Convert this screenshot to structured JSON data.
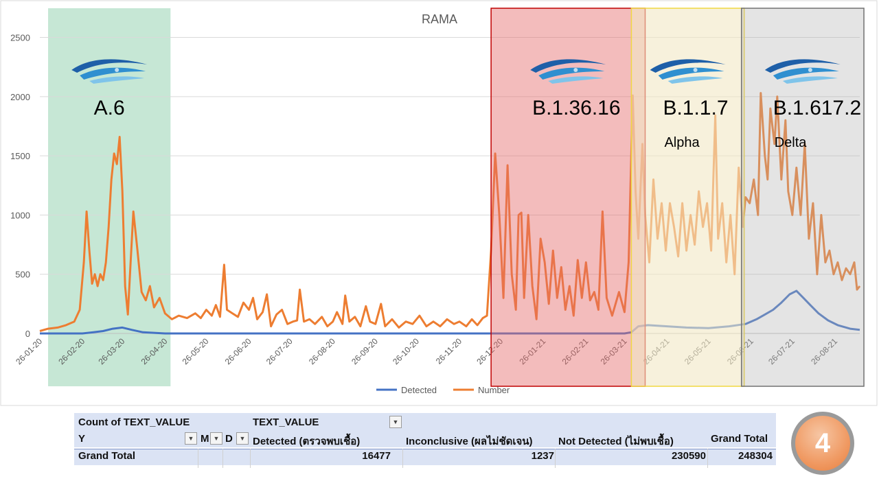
{
  "chart_data": {
    "type": "line",
    "title": "RAMA",
    "ylim": [
      0,
      2700
    ],
    "y_ticks": [
      0,
      500,
      1000,
      1500,
      2000,
      2500
    ],
    "x_ticks": [
      "26-01-20",
      "26-02-20",
      "26-03-20",
      "26-04-20",
      "26-05-20",
      "26-06-20",
      "26-07-20",
      "26-08-20",
      "26-09-20",
      "26-10-20",
      "26-11-20",
      "26-12-20",
      "26-01-21",
      "26-02-21",
      "26-03-21",
      "26-04-21",
      "26-05-21",
      "26-06-21",
      "26-07-21",
      "26-08-21"
    ],
    "x_range": [
      "2020-01-26",
      "2021-09-13"
    ],
    "grid": true,
    "legend_position": "bottom",
    "series": [
      {
        "name": "Detected",
        "color": "#4472c4",
        "points": [
          [
            "2020-01-26",
            0
          ],
          [
            "2020-02-26",
            0
          ],
          [
            "2020-03-05",
            10
          ],
          [
            "2020-03-12",
            20
          ],
          [
            "2020-03-19",
            40
          ],
          [
            "2020-03-26",
            50
          ],
          [
            "2020-04-02",
            30
          ],
          [
            "2020-04-10",
            10
          ],
          [
            "2020-04-26",
            0
          ],
          [
            "2020-12-20",
            0
          ],
          [
            "2021-01-26",
            0
          ],
          [
            "2021-03-26",
            0
          ],
          [
            "2021-03-31",
            10
          ],
          [
            "2021-04-05",
            60
          ],
          [
            "2021-04-12",
            70
          ],
          [
            "2021-04-26",
            60
          ],
          [
            "2021-05-10",
            50
          ],
          [
            "2021-05-26",
            45
          ],
          [
            "2021-06-10",
            60
          ],
          [
            "2021-06-22",
            80
          ],
          [
            "2021-06-30",
            120
          ],
          [
            "2021-07-06",
            160
          ],
          [
            "2021-07-12",
            200
          ],
          [
            "2021-07-18",
            260
          ],
          [
            "2021-07-24",
            330
          ],
          [
            "2021-07-29",
            360
          ],
          [
            "2021-08-03",
            300
          ],
          [
            "2021-08-08",
            240
          ],
          [
            "2021-08-14",
            170
          ],
          [
            "2021-08-21",
            110
          ],
          [
            "2021-08-28",
            70
          ],
          [
            "2021-09-06",
            40
          ],
          [
            "2021-09-13",
            30
          ]
        ]
      },
      {
        "name": "Number",
        "color": "#ed7d31",
        "points": [
          [
            "2020-01-26",
            20
          ],
          [
            "2020-02-01",
            40
          ],
          [
            "2020-02-08",
            50
          ],
          [
            "2020-02-14",
            70
          ],
          [
            "2020-02-20",
            100
          ],
          [
            "2020-02-24",
            200
          ],
          [
            "2020-02-27",
            600
          ],
          [
            "2020-02-29",
            1030
          ],
          [
            "2020-03-02",
            700
          ],
          [
            "2020-03-04",
            420
          ],
          [
            "2020-03-06",
            500
          ],
          [
            "2020-03-08",
            400
          ],
          [
            "2020-03-10",
            500
          ],
          [
            "2020-03-12",
            450
          ],
          [
            "2020-03-14",
            600
          ],
          [
            "2020-03-16",
            900
          ],
          [
            "2020-03-18",
            1300
          ],
          [
            "2020-03-20",
            1520
          ],
          [
            "2020-03-22",
            1430
          ],
          [
            "2020-03-24",
            1660
          ],
          [
            "2020-03-26",
            1200
          ],
          [
            "2020-03-28",
            400
          ],
          [
            "2020-03-30",
            160
          ],
          [
            "2020-04-01",
            600
          ],
          [
            "2020-04-03",
            1030
          ],
          [
            "2020-04-06",
            700
          ],
          [
            "2020-04-09",
            350
          ],
          [
            "2020-04-12",
            280
          ],
          [
            "2020-04-15",
            400
          ],
          [
            "2020-04-18",
            220
          ],
          [
            "2020-04-22",
            300
          ],
          [
            "2020-04-26",
            170
          ],
          [
            "2020-05-01",
            120
          ],
          [
            "2020-05-06",
            150
          ],
          [
            "2020-05-12",
            130
          ],
          [
            "2020-05-18",
            170
          ],
          [
            "2020-05-22",
            130
          ],
          [
            "2020-05-26",
            200
          ],
          [
            "2020-05-30",
            150
          ],
          [
            "2020-06-02",
            240
          ],
          [
            "2020-06-05",
            140
          ],
          [
            "2020-06-08",
            580
          ],
          [
            "2020-06-10",
            200
          ],
          [
            "2020-06-14",
            170
          ],
          [
            "2020-06-18",
            140
          ],
          [
            "2020-06-22",
            260
          ],
          [
            "2020-06-26",
            200
          ],
          [
            "2020-06-29",
            300
          ],
          [
            "2020-07-02",
            120
          ],
          [
            "2020-07-06",
            180
          ],
          [
            "2020-07-09",
            330
          ],
          [
            "2020-07-12",
            60
          ],
          [
            "2020-07-16",
            160
          ],
          [
            "2020-07-20",
            200
          ],
          [
            "2020-07-24",
            80
          ],
          [
            "2020-07-28",
            100
          ],
          [
            "2020-07-31",
            110
          ],
          [
            "2020-08-02",
            370
          ],
          [
            "2020-08-05",
            100
          ],
          [
            "2020-08-09",
            120
          ],
          [
            "2020-08-13",
            80
          ],
          [
            "2020-08-18",
            140
          ],
          [
            "2020-08-22",
            60
          ],
          [
            "2020-08-26",
            100
          ],
          [
            "2020-08-29",
            180
          ],
          [
            "2020-09-02",
            80
          ],
          [
            "2020-09-04",
            320
          ],
          [
            "2020-09-07",
            100
          ],
          [
            "2020-09-11",
            140
          ],
          [
            "2020-09-15",
            60
          ],
          [
            "2020-09-19",
            230
          ],
          [
            "2020-09-22",
            100
          ],
          [
            "2020-09-26",
            80
          ],
          [
            "2020-09-30",
            250
          ],
          [
            "2020-10-03",
            60
          ],
          [
            "2020-10-08",
            120
          ],
          [
            "2020-10-13",
            50
          ],
          [
            "2020-10-18",
            100
          ],
          [
            "2020-10-23",
            80
          ],
          [
            "2020-10-28",
            150
          ],
          [
            "2020-11-02",
            60
          ],
          [
            "2020-11-07",
            100
          ],
          [
            "2020-11-12",
            60
          ],
          [
            "2020-11-17",
            120
          ],
          [
            "2020-11-22",
            80
          ],
          [
            "2020-11-26",
            100
          ],
          [
            "2020-12-01",
            60
          ],
          [
            "2020-12-05",
            120
          ],
          [
            "2020-12-09",
            70
          ],
          [
            "2020-12-13",
            130
          ],
          [
            "2020-12-16",
            150
          ],
          [
            "2020-12-19",
            700
          ],
          [
            "2020-12-22",
            1520
          ],
          [
            "2020-12-25",
            1000
          ],
          [
            "2020-12-28",
            300
          ],
          [
            "2020-12-31",
            1420
          ],
          [
            "2021-01-03",
            500
          ],
          [
            "2021-01-06",
            200
          ],
          [
            "2021-01-08",
            1000
          ],
          [
            "2021-01-10",
            1020
          ],
          [
            "2021-01-12",
            300
          ],
          [
            "2021-01-15",
            1000
          ],
          [
            "2021-01-18",
            400
          ],
          [
            "2021-01-21",
            120
          ],
          [
            "2021-01-24",
            800
          ],
          [
            "2021-01-27",
            600
          ],
          [
            "2021-01-30",
            250
          ],
          [
            "2021-02-02",
            700
          ],
          [
            "2021-02-05",
            300
          ],
          [
            "2021-02-08",
            560
          ],
          [
            "2021-02-11",
            200
          ],
          [
            "2021-02-14",
            400
          ],
          [
            "2021-02-17",
            150
          ],
          [
            "2021-02-20",
            620
          ],
          [
            "2021-02-23",
            300
          ],
          [
            "2021-02-26",
            600
          ],
          [
            "2021-03-01",
            280
          ],
          [
            "2021-03-04",
            350
          ],
          [
            "2021-03-07",
            200
          ],
          [
            "2021-03-10",
            1030
          ],
          [
            "2021-03-13",
            300
          ],
          [
            "2021-03-17",
            150
          ],
          [
            "2021-03-22",
            350
          ],
          [
            "2021-03-26",
            180
          ],
          [
            "2021-03-29",
            600
          ],
          [
            "2021-04-01",
            2010
          ],
          [
            "2021-04-03",
            1200
          ],
          [
            "2021-04-05",
            800
          ],
          [
            "2021-04-08",
            1600
          ],
          [
            "2021-04-10",
            1000
          ],
          [
            "2021-04-13",
            600
          ],
          [
            "2021-04-16",
            1300
          ],
          [
            "2021-04-19",
            800
          ],
          [
            "2021-04-22",
            1100
          ],
          [
            "2021-04-25",
            700
          ],
          [
            "2021-04-28",
            1100
          ],
          [
            "2021-05-01",
            900
          ],
          [
            "2021-05-04",
            650
          ],
          [
            "2021-05-07",
            1100
          ],
          [
            "2021-05-10",
            700
          ],
          [
            "2021-05-13",
            1000
          ],
          [
            "2021-05-16",
            750
          ],
          [
            "2021-05-19",
            1200
          ],
          [
            "2021-05-22",
            900
          ],
          [
            "2021-05-25",
            1100
          ],
          [
            "2021-05-28",
            700
          ],
          [
            "2021-05-31",
            1840
          ],
          [
            "2021-06-02",
            800
          ],
          [
            "2021-06-05",
            1100
          ],
          [
            "2021-06-08",
            600
          ],
          [
            "2021-06-11",
            1000
          ],
          [
            "2021-06-14",
            500
          ],
          [
            "2021-06-17",
            1400
          ],
          [
            "2021-06-20",
            900
          ],
          [
            "2021-06-22",
            1150
          ],
          [
            "2021-06-25",
            1100
          ],
          [
            "2021-06-28",
            1300
          ],
          [
            "2021-07-01",
            1000
          ],
          [
            "2021-07-03",
            2030
          ],
          [
            "2021-07-06",
            1500
          ],
          [
            "2021-07-08",
            1300
          ],
          [
            "2021-07-10",
            1900
          ],
          [
            "2021-07-13",
            1600
          ],
          [
            "2021-07-15",
            2000
          ],
          [
            "2021-07-18",
            1300
          ],
          [
            "2021-07-21",
            1800
          ],
          [
            "2021-07-23",
            1200
          ],
          [
            "2021-07-26",
            1000
          ],
          [
            "2021-07-29",
            1400
          ],
          [
            "2021-08-01",
            1000
          ],
          [
            "2021-08-04",
            1600
          ],
          [
            "2021-08-07",
            800
          ],
          [
            "2021-08-10",
            1100
          ],
          [
            "2021-08-13",
            500
          ],
          [
            "2021-08-16",
            1000
          ],
          [
            "2021-08-19",
            600
          ],
          [
            "2021-08-22",
            700
          ],
          [
            "2021-08-25",
            500
          ],
          [
            "2021-08-28",
            600
          ],
          [
            "2021-08-31",
            450
          ],
          [
            "2021-09-03",
            550
          ],
          [
            "2021-09-06",
            500
          ],
          [
            "2021-09-09",
            600
          ],
          [
            "2021-09-11",
            370
          ],
          [
            "2021-09-13",
            400
          ]
        ]
      }
    ],
    "variant_regions": [
      {
        "start": "2020-02-01",
        "end": "2020-04-30",
        "fill": "#c6e7d5",
        "fill_opacity": 1,
        "stroke": "none",
        "label": "A.6",
        "sublabel": ""
      },
      {
        "start": "2020-12-19",
        "end": "2021-04-10",
        "fill": "#e46b6b",
        "fill_opacity": 0.45,
        "stroke": "#c00000",
        "label": "B.1.36.16",
        "sublabel": ""
      },
      {
        "start": "2021-03-31",
        "end": "2021-06-21",
        "fill": "#f2e8c4",
        "fill_opacity": 0.6,
        "stroke": "#f0d840",
        "label": "B.1.1.7",
        "sublabel": "Alpha"
      },
      {
        "start": "2021-06-19",
        "end": "2021-09-16",
        "fill": "#b3b3b3",
        "fill_opacity": 0.35,
        "stroke": "#707070",
        "label": "B.1.617.2",
        "sublabel": "Delta"
      }
    ]
  },
  "pivot": {
    "row1": {
      "label_count": "Count of TEXT_VALUE",
      "label_field": "TEXT_VALUE"
    },
    "row2": {
      "y_label": "Y",
      "m_label": "M",
      "d_label": "D",
      "detected": "Detected (ตรวจพบเชื้อ)",
      "inconclusive": "Inconclusive (ผลไม่ชัดเจน)",
      "not_detected": "Not Detected (ไม่พบเชื้อ)",
      "grand_total": "Grand Total"
    },
    "row3": {
      "label": "Grand Total",
      "detected": "16477",
      "inconclusive": "1237",
      "not_detected": "230590",
      "grand_total": "248304"
    }
  },
  "badge": {
    "number": "4"
  }
}
